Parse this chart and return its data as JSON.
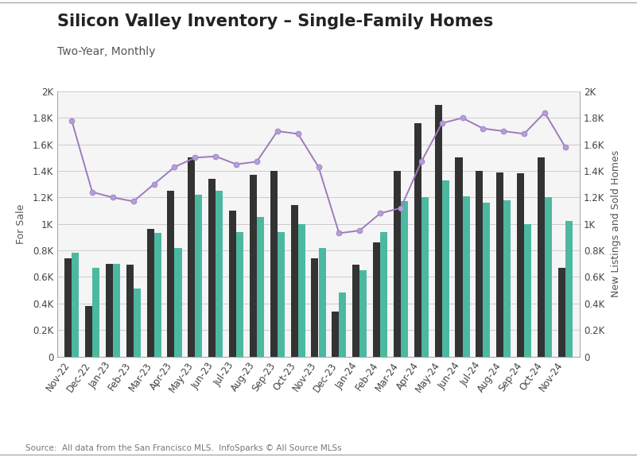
{
  "title": "Silicon Valley Inventory – Single-Family Homes",
  "subtitle": "Two-Year, Monthly",
  "source": "Source:  All data from the San Francisco MLS.  InfoSparks © All Source MLSs",
  "months": [
    "Nov-22",
    "Dec-22",
    "Jan-23",
    "Feb-23",
    "Mar-23",
    "Apr-23",
    "May-23",
    "Jun-23",
    "Jul-23",
    "Aug-23",
    "Sep-23",
    "Oct-23",
    "Nov-23",
    "Dec-23",
    "Jan-24",
    "Feb-24",
    "Mar-24",
    "Apr-24",
    "May-24",
    "Jun-24",
    "Jul-24",
    "Aug-24",
    "Sep-24",
    "Oct-24",
    "Nov-24"
  ],
  "for_sale": [
    1780,
    1240,
    1200,
    1170,
    1300,
    1430,
    1500,
    1510,
    1450,
    1470,
    1700,
    1680,
    1430,
    930,
    950,
    1080,
    1120,
    1470,
    1760,
    1800,
    1720,
    1700,
    1680,
    1840,
    1580
  ],
  "new_listings": [
    740,
    380,
    700,
    690,
    960,
    1250,
    1500,
    1340,
    1100,
    1370,
    1400,
    1140,
    740,
    340,
    690,
    860,
    1400,
    1760,
    1900,
    1500,
    1400,
    1390,
    1380,
    1500,
    670
  ],
  "sold": [
    780,
    670,
    700,
    510,
    930,
    820,
    1220,
    1250,
    940,
    1050,
    940,
    1000,
    820,
    480,
    650,
    940,
    1170,
    1200,
    1330,
    1210,
    1160,
    1180,
    1000,
    1200,
    1020
  ],
  "new_listings_color": "#333333",
  "sold_color": "#4db8a0",
  "for_sale_color": "#b39ddb",
  "for_sale_line_color": "#9c7bbd",
  "ylim": [
    0,
    2000
  ],
  "yticks": [
    0,
    200,
    400,
    600,
    800,
    1000,
    1200,
    1400,
    1600,
    1800,
    2000
  ],
  "ytick_labels": [
    "0",
    "0.2K",
    "0.4K",
    "0.6K",
    "0.8K",
    "1K",
    "1.2K",
    "1.4K",
    "1.6K",
    "1.8K",
    "2K"
  ],
  "ylabel_left": "For Sale",
  "ylabel_right": "New Listings and Sold Homes",
  "plot_bg_color": "#f5f5f5",
  "outer_bg_color": "#ffffff",
  "title_fontsize": 15,
  "subtitle_fontsize": 10,
  "axis_fontsize": 8.5,
  "legend_fontsize": 10
}
